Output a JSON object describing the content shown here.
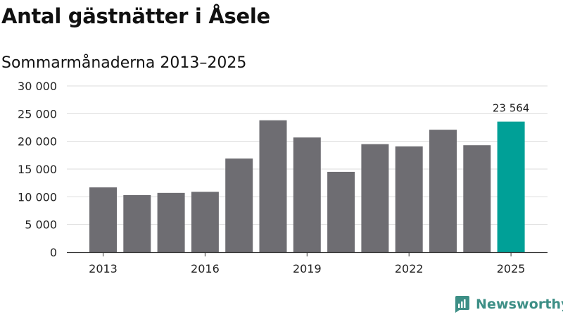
{
  "title": "Antal gästnätter i Åsele",
  "subtitle": "Sommarmånaderna 2013–2025",
  "brand": {
    "name": "Newsworthy",
    "icon": "newsworthy-logo-icon"
  },
  "colors": {
    "bar": "#6e6d72",
    "highlight": "#00a097",
    "grid": "#dddddd",
    "axis": "#333333",
    "brand": "#3d8f86"
  },
  "chart_data": {
    "type": "bar",
    "title": "Antal gästnätter i Åsele",
    "subtitle": "Sommarmånaderna 2013–2025",
    "xlabel": "",
    "ylabel": "",
    "categories": [
      "2013",
      "2014",
      "2015",
      "2016",
      "2017",
      "2018",
      "2019",
      "2020",
      "2021",
      "2022",
      "2023",
      "2024",
      "2025"
    ],
    "values": [
      11700,
      10300,
      10700,
      10900,
      16900,
      23800,
      20700,
      14500,
      19500,
      19100,
      22100,
      19300,
      23564
    ],
    "x_tick_labels": [
      "2013",
      "2016",
      "2019",
      "2022",
      "2025"
    ],
    "y_ticks": [
      0,
      5000,
      10000,
      15000,
      20000,
      25000,
      30000
    ],
    "y_tick_labels": [
      "0",
      "5 000",
      "10 000",
      "15 000",
      "20 000",
      "25 000",
      "30 000"
    ],
    "ylim": [
      0,
      30000
    ],
    "highlight_category": "2025",
    "annotations": [
      {
        "category": "2025",
        "text": "23 564"
      }
    ],
    "grid": true,
    "legend": "none"
  }
}
